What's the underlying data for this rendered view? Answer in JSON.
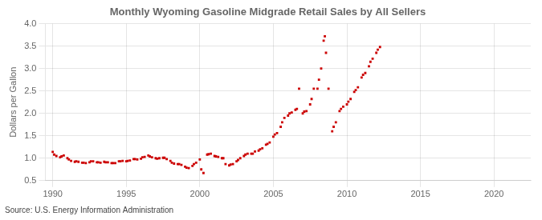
{
  "chart_data": {
    "type": "scatter",
    "title": "Monthly Wyoming Gasoline Midgrade Retail Sales by All Sellers",
    "ylabel": "Dollars per Gallon",
    "source": "Source: U.S. Energy Information Administration",
    "xlim": [
      1989.5,
      2022.5
    ],
    "ylim": [
      0.5,
      4.0
    ],
    "xticks": [
      1990,
      1995,
      2000,
      2005,
      2010,
      2015,
      2020
    ],
    "yticks": [
      0.5,
      {
        "value": 1.0,
        "label": "1.0"
      },
      1.5,
      {
        "value": 2.0,
        "label": "2.0"
      },
      2.5,
      {
        "value": 3.0,
        "label": "3.0"
      },
      3.5,
      {
        "value": 4.0,
        "label": "4.0"
      }
    ],
    "grid": true,
    "color": "#cc0000",
    "marker": "square",
    "x": [
      1990.0,
      1990.25,
      1990.5,
      1990.75,
      1991.0,
      1991.25,
      1991.5,
      1991.75,
      1992.0,
      1992.25,
      1992.5,
      1992.75,
      1993.0,
      1993.25,
      1993.5,
      1993.75,
      1994.0,
      1994.25,
      1994.5,
      1994.75,
      1995.0,
      1995.25,
      1995.5,
      1995.75,
      1996.0,
      1996.25,
      1996.5,
      1996.75,
      1997.0,
      1997.25,
      1997.5,
      1997.75,
      1998.0,
      1998.25,
      1998.5,
      1998.75,
      1999.0,
      1999.25,
      1999.5,
      1999.75,
      2000.0,
      2000.25,
      2000.5,
      2000.75,
      2001.0,
      2001.25,
      2001.5,
      2001.75,
      2002.0,
      2002.25,
      2002.5,
      2002.75,
      2003.0,
      2003.25,
      2003.5,
      2003.75,
      2004.0,
      2004.25,
      2004.5,
      2004.75,
      2005.0,
      2005.25,
      2005.5,
      2005.75,
      2006.0,
      2006.25,
      2006.5,
      2006.75,
      2007.0,
      2007.25,
      2007.5,
      2007.75,
      2008.0,
      2008.25,
      2008.5,
      2008.75,
      2009.0,
      2009.25,
      2009.5,
      2009.75,
      2010.0,
      2010.25,
      2010.5,
      2010.75,
      2011.0,
      2011.25,
      2011.5,
      2011.75,
      2012.0,
      2012.25,
      1990.1,
      1990.6,
      1991.1,
      1991.6,
      1992.1,
      1992.6,
      1993.1,
      1993.6,
      1994.1,
      1994.6,
      1995.1,
      1995.6,
      1996.1,
      1996.6,
      1997.1,
      1997.6,
      1998.1,
      1998.6,
      1999.1,
      1999.6,
      2000.1,
      2000.6,
      2001.1,
      2001.6,
      2002.1,
      2002.6,
      2003.1,
      2003.6,
      2004.1,
      2004.6,
      2005.1,
      2005.6,
      2006.1,
      2006.6,
      2007.1,
      2007.6,
      2008.1,
      2008.42,
      2008.58,
      2009.1,
      2009.6,
      2010.1,
      2010.6,
      2011.1,
      2011.6,
      2012.1
    ],
    "values": [
      1.14,
      1.05,
      1.02,
      1.06,
      1.0,
      0.94,
      0.92,
      0.92,
      0.9,
      0.89,
      0.91,
      0.93,
      0.91,
      0.9,
      0.92,
      0.91,
      0.89,
      0.89,
      0.93,
      0.94,
      0.93,
      0.95,
      0.98,
      0.97,
      0.99,
      1.03,
      1.06,
      1.02,
      1.0,
      1.0,
      1.01,
      0.98,
      0.94,
      0.88,
      0.87,
      0.85,
      0.81,
      0.78,
      0.83,
      0.9,
      0.97,
      0.67,
      1.08,
      1.1,
      1.05,
      1.03,
      1.0,
      0.87,
      0.84,
      0.87,
      0.93,
      1.0,
      1.05,
      1.1,
      1.1,
      1.15,
      1.17,
      1.22,
      1.3,
      1.35,
      1.48,
      1.56,
      1.7,
      1.9,
      1.95,
      2.02,
      2.08,
      2.55,
      2.0,
      2.05,
      2.2,
      2.55,
      2.55,
      3.0,
      3.72,
      2.55,
      1.6,
      1.8,
      2.05,
      2.15,
      2.2,
      2.32,
      2.48,
      2.58,
      2.8,
      2.9,
      3.05,
      3.22,
      3.35,
      3.48,
      1.08,
      1.04,
      0.97,
      0.93,
      0.9,
      0.93,
      0.91,
      0.91,
      0.89,
      0.93,
      0.94,
      0.98,
      1.02,
      1.04,
      0.99,
      1.01,
      0.9,
      0.87,
      0.79,
      0.87,
      0.75,
      1.09,
      1.04,
      1.0,
      0.86,
      0.96,
      1.08,
      1.1,
      1.2,
      1.32,
      1.53,
      1.8,
      2.0,
      2.1,
      2.04,
      2.32,
      2.75,
      3.62,
      3.35,
      1.7,
      2.1,
      2.26,
      2.52,
      2.86,
      3.15,
      3.42
    ]
  }
}
